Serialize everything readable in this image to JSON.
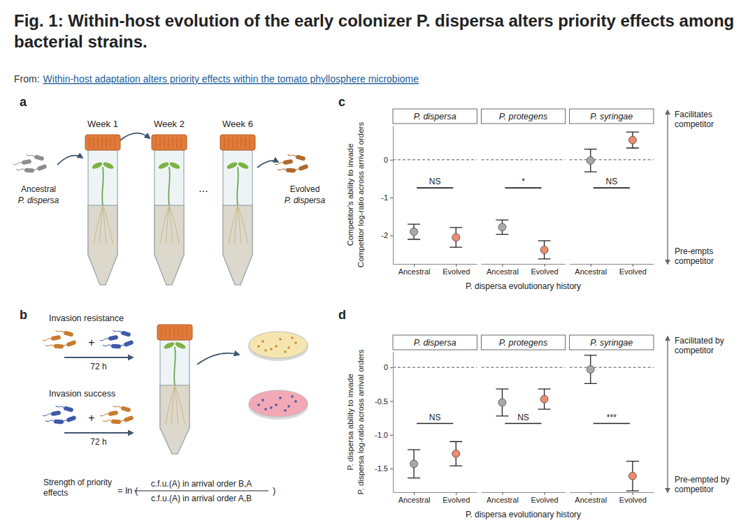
{
  "header": {
    "title": "Fig. 1: Within-host evolution of the early colonizer P. dispersa alters priority effects among bacterial strains.",
    "source_prefix": "From:",
    "source_link": "Within-host adaptation alters priority effects within the tomato phyllosphere microbiome"
  },
  "panel_a": {
    "letter": "a",
    "weeks": [
      "Week 1",
      "Week 2",
      "Week 6"
    ],
    "ellipsis": "...",
    "ancestral_label": [
      "Ancestral",
      "P. dispersa"
    ],
    "evolved_label": [
      "Evolved",
      "P. dispersa"
    ]
  },
  "panel_b": {
    "letter": "b",
    "invasion_resistance": "Invasion resistance",
    "invasion_success": "Invasion success",
    "plus": "+",
    "duration": "72 h",
    "formula": {
      "label": "Strength of priority effects",
      "operator": "= ln (",
      "numerator": "c.f.u.(A) in arrival order B,A",
      "denominator": "c.f.u.(A) in arrival order A,B",
      "close": ")"
    }
  },
  "chart_data": [
    {
      "panel": "c",
      "type": "point",
      "y_label": [
        "Competitor's ability to invade",
        "Competitor log-ratio across arrival orders"
      ],
      "x_label": "P. dispersa evolutionary history",
      "categories": [
        "Ancestral",
        "Evolved"
      ],
      "colors": [
        "#a9a9a9",
        "#ee8a6d"
      ],
      "ylim": [
        -2.75,
        0.9
      ],
      "yticks": [
        -2,
        -1,
        0
      ],
      "reference_line": 0,
      "annotations": {
        "top": "Facilitates competitor",
        "bottom": "Pre-empts competitor"
      },
      "facets": [
        {
          "title": "P. dispersa",
          "values": [
            -1.9,
            -2.05
          ],
          "errors": [
            0.2,
            0.26
          ],
          "significance": "NS"
        },
        {
          "title": "P. protegens",
          "values": [
            -1.78,
            -2.38
          ],
          "errors": [
            0.19,
            0.24
          ],
          "significance": "*"
        },
        {
          "title": "P. syringae",
          "values": [
            -0.02,
            0.52
          ],
          "errors": [
            0.3,
            0.21
          ],
          "significance": "NS"
        }
      ]
    },
    {
      "panel": "d",
      "type": "point",
      "y_label": [
        "P. dispersa ability to invade",
        "P. dispersa log-ratio across arrival orders"
      ],
      "x_label": "P. dispersa evolutionary history",
      "categories": [
        "Ancestral",
        "Evolved"
      ],
      "colors": [
        "#a9a9a9",
        "#ee8a6d"
      ],
      "ylim": [
        -1.85,
        0.23
      ],
      "yticks": [
        -1.5,
        {
          "value": -1,
          "label": "-1.0"
        },
        -0.5,
        0
      ],
      "reference_line": 0,
      "annotations": {
        "top": "Facilitated by competitor",
        "bottom": "Pre-empted by competitor"
      },
      "facets": [
        {
          "title": "P. dispersa",
          "values": [
            -1.43,
            -1.28
          ],
          "errors": [
            0.21,
            0.18
          ],
          "significance": "NS"
        },
        {
          "title": "P. protegens",
          "values": [
            -0.52,
            -0.47
          ],
          "errors": [
            0.2,
            0.15
          ],
          "significance": "NS"
        },
        {
          "title": "P. syringae",
          "values": [
            -0.03,
            -1.61
          ],
          "errors": [
            0.21,
            0.22
          ],
          "significance": "***"
        }
      ]
    }
  ]
}
